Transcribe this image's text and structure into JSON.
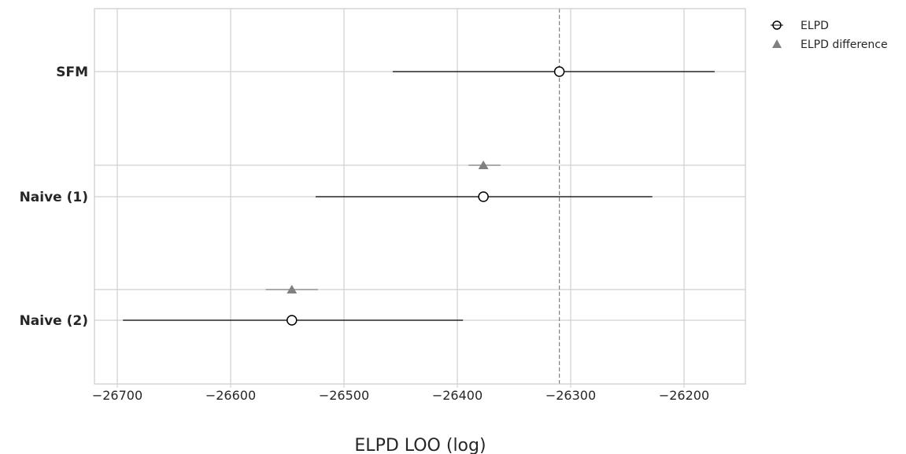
{
  "chart_data": {
    "type": "forest",
    "title": "",
    "xlabel": "ELPD LOO (log)",
    "ylabel": "",
    "xlim": [
      -26720,
      -26140
    ],
    "x_ticks": [
      -26700,
      -26600,
      -26500,
      -26400,
      -26300,
      -26200
    ],
    "x_tick_labels": [
      "−26700",
      "−26600",
      "−26500",
      "−26400",
      "−26300",
      "−26200"
    ],
    "grid": true,
    "legend_position": "top-right (outside)",
    "reference_line": -26310,
    "models": [
      {
        "name": "SFM",
        "elpd": -26310,
        "elpd_low": -26457,
        "elpd_high": -26173,
        "diff": null,
        "diff_low": null,
        "diff_high": null
      },
      {
        "name": "Naive (1)",
        "elpd": -26377,
        "elpd_low": -26525,
        "elpd_high": -26228,
        "diff": -26377,
        "diff_low": -26390,
        "diff_high": -26362
      },
      {
        "name": "Naive (2)",
        "elpd": -26546,
        "elpd_low": -26695,
        "elpd_high": -26395,
        "diff": -26546,
        "diff_low": -26569,
        "diff_high": -26523
      }
    ],
    "series": [
      {
        "name": "ELPD",
        "marker": "open-circle",
        "color": "#000000"
      },
      {
        "name": "ELPD difference",
        "marker": "triangle",
        "color": "#808080"
      }
    ]
  }
}
